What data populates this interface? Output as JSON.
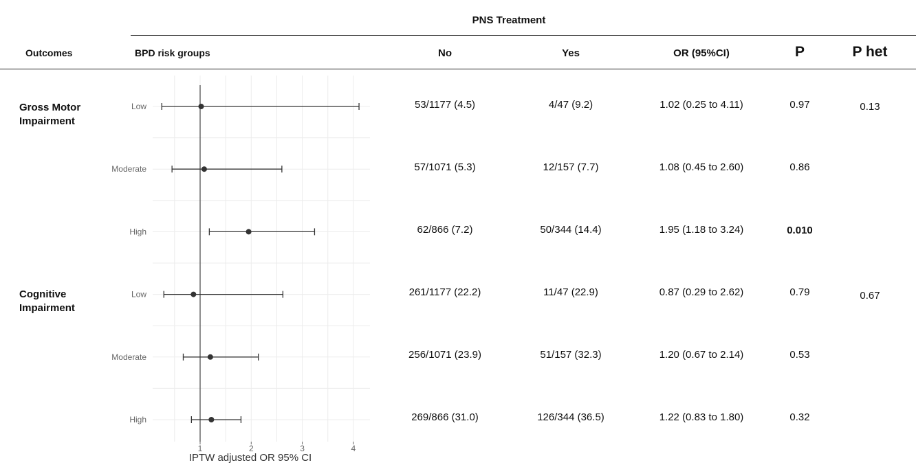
{
  "header": {
    "group_title": "PNS Treatment",
    "col_outcomes": "Outcomes",
    "col_risk_groups": "BPD risk groups",
    "col_no": "No",
    "col_yes": "Yes",
    "col_or": "OR (95%CI)",
    "col_p": "P",
    "col_p_het": "P het"
  },
  "outcomes": [
    {
      "label_line1": "Gross Motor",
      "label_line2": "Impairment",
      "p_het": "0.13"
    },
    {
      "label_line1": "Cognitive",
      "label_line2": "Impairment",
      "p_het": "0.67"
    }
  ],
  "rows": [
    {
      "outcome": 0,
      "group": "Low",
      "no": "53/1177 (4.5)",
      "yes": "4/47 (9.2)",
      "or_ci": "1.02 (0.25 to 4.11)",
      "p": "0.97",
      "p_bold": false
    },
    {
      "outcome": 0,
      "group": "Moderate",
      "no": "57/1071 (5.3)",
      "yes": "12/157 (7.7)",
      "or_ci": "1.08 (0.45 to 2.60)",
      "p": "0.86",
      "p_bold": false
    },
    {
      "outcome": 0,
      "group": "High",
      "no": "62/866 (7.2)",
      "yes": "50/344 (14.4)",
      "or_ci": "1.95 (1.18 to 3.24)",
      "p": "0.010",
      "p_bold": true
    },
    {
      "outcome": 1,
      "group": "Low",
      "no": "261/1177 (22.2)",
      "yes": "11/47 (22.9)",
      "or_ci": "0.87 (0.29 to 2.62)",
      "p": "0.79",
      "p_bold": false
    },
    {
      "outcome": 1,
      "group": "Moderate",
      "no": "256/1071 (23.9)",
      "yes": "51/157 (32.3)",
      "or_ci": "1.20 (0.67 to 2.14)",
      "p": "0.53",
      "p_bold": false
    },
    {
      "outcome": 1,
      "group": "High",
      "no": "269/866 (31.0)",
      "yes": "126/344 (36.5)",
      "or_ci": "1.22 (0.83 to 1.80)",
      "p": "0.32",
      "p_bold": false
    }
  ],
  "chart_data": {
    "type": "forest",
    "xlabel": "IPTW adjusted OR 95% CI",
    "xlim": [
      0.2,
      4.5
    ],
    "xticks": [
      1,
      2,
      3,
      4
    ],
    "reference_line": 1,
    "grid": true,
    "categories": [
      "Low",
      "Moderate",
      "High",
      "Low",
      "Moderate",
      "High"
    ],
    "series": [
      {
        "estimates": [
          1.02,
          1.08,
          1.95,
          0.87,
          1.2,
          1.22
        ],
        "lower": [
          0.25,
          0.45,
          1.18,
          0.29,
          0.67,
          0.83
        ],
        "upper": [
          4.11,
          2.6,
          3.24,
          2.62,
          2.14,
          1.8
        ]
      }
    ],
    "colors": {
      "mark": "#333333",
      "grid": "#ececec",
      "ref": "#444444",
      "label": "#666666"
    }
  }
}
